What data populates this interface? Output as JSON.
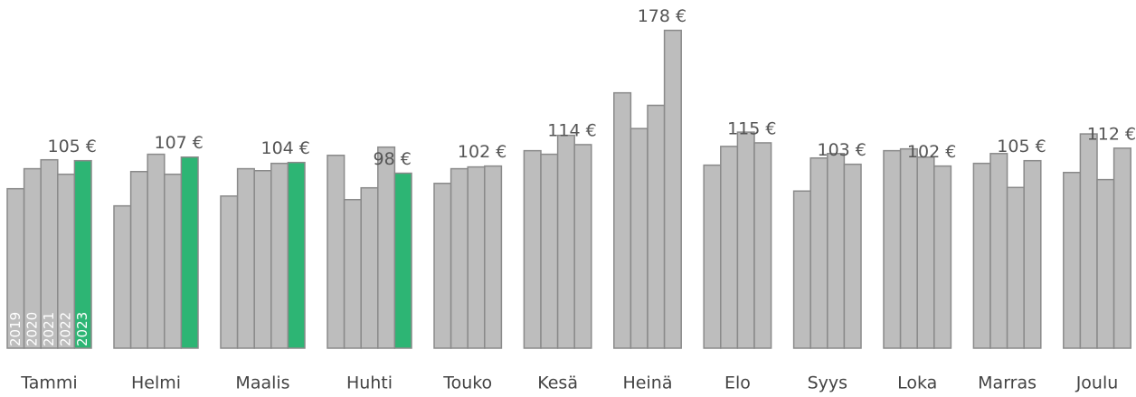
{
  "chart_data": {
    "type": "bar",
    "categories": [
      "Tammi",
      "Helmi",
      "Maalis",
      "Huhti",
      "Touko",
      "Kesä",
      "Heinä",
      "Elo",
      "Syys",
      "Loka",
      "Marras",
      "Joulu"
    ],
    "ylim": [
      0,
      195
    ],
    "series": [
      {
        "name": "2019",
        "color": "#bdbdbd",
        "values": [
          89.3,
          79.7,
          85.2,
          108,
          92.3,
          110.6,
          143,
          102.5,
          88,
          110.6,
          103.5,
          98.4
        ]
      },
      {
        "name": "2020",
        "color": "#bdbdbd",
        "values": [
          100.5,
          98.9,
          100.5,
          83.2,
          100.5,
          108.6,
          123,
          113,
          106.5,
          111.6,
          109,
          120
        ]
      },
      {
        "name": "2021",
        "color": "#bdbdbd",
        "values": [
          105.5,
          108.6,
          99.4,
          89.8,
          101.5,
          119.2,
          136,
          121,
          109,
          107,
          90,
          94.4
        ]
      },
      {
        "name": "2022",
        "color": "#bdbdbd",
        "values": [
          97.4,
          97.4,
          103.5,
          112.6,
          102,
          114,
          178,
          115,
          103,
          102,
          105,
          112
        ],
        "value_labels": [
          null,
          null,
          null,
          null,
          "102 €",
          "114 €",
          "178 €",
          "115 €",
          "103 €",
          "102 €",
          "105 €",
          "112 €"
        ]
      },
      {
        "name": "2023",
        "color": "#2db574",
        "values": [
          105,
          107,
          104,
          98,
          null,
          null,
          null,
          null,
          null,
          null,
          null,
          null
        ],
        "value_labels": [
          "105 €",
          "107 €",
          "104 €",
          "98 €",
          null,
          null,
          null,
          null,
          null,
          null,
          null,
          null
        ]
      }
    ]
  }
}
